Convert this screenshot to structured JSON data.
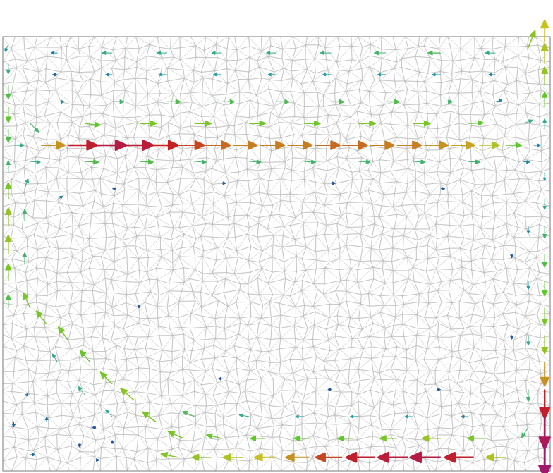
{
  "chart_data": {
    "type": "quiver",
    "xlim": [
      0,
      100
    ],
    "ylim": [
      0,
      80
    ],
    "tick_labels": false,
    "grid": false,
    "color_range": [
      0,
      1
    ],
    "vectors": [
      [
        2,
        60,
        0.3,
        0
      ],
      [
        7,
        60,
        0.7,
        0
      ],
      [
        12,
        60,
        0.85,
        0
      ],
      [
        17,
        60,
        0.9,
        0
      ],
      [
        22,
        60,
        0.88,
        0
      ],
      [
        27,
        60,
        0.82,
        0
      ],
      [
        32,
        60,
        0.78,
        0
      ],
      [
        37,
        60,
        0.74,
        0
      ],
      [
        42,
        60,
        0.72,
        0
      ],
      [
        47,
        60,
        0.72,
        0
      ],
      [
        52,
        60,
        0.72,
        0
      ],
      [
        57,
        60,
        0.74,
        0
      ],
      [
        62,
        60,
        0.74,
        0
      ],
      [
        67,
        60,
        0.72,
        0
      ],
      [
        72,
        60,
        0.72,
        0
      ],
      [
        77,
        60,
        0.7,
        0
      ],
      [
        82,
        60,
        0.68,
        0
      ],
      [
        87,
        60,
        0.6,
        0
      ],
      [
        92,
        60,
        0.45,
        0
      ],
      [
        97,
        60,
        0.2,
        0
      ],
      [
        5,
        57,
        0.3,
        -0.02
      ],
      [
        15,
        57,
        0.4,
        -0.02
      ],
      [
        25,
        57,
        0.4,
        -0.02
      ],
      [
        35,
        57,
        0.35,
        -0.02
      ],
      [
        45,
        57,
        0.35,
        -0.02
      ],
      [
        55,
        57,
        0.35,
        -0.02
      ],
      [
        65,
        57,
        0.35,
        -0.02
      ],
      [
        75,
        57,
        0.35,
        -0.02
      ],
      [
        85,
        57,
        0.35,
        -0.02
      ],
      [
        95,
        57,
        0.2,
        -0.02
      ],
      [
        5,
        64,
        0.25,
        -0.25
      ],
      [
        15,
        64,
        0.45,
        -0.05
      ],
      [
        25,
        64,
        0.5,
        0
      ],
      [
        35,
        64,
        0.5,
        0
      ],
      [
        45,
        64,
        0.48,
        0
      ],
      [
        55,
        64,
        0.48,
        0
      ],
      [
        65,
        64,
        0.5,
        0
      ],
      [
        75,
        64,
        0.5,
        0
      ],
      [
        85,
        64,
        0.45,
        0.02
      ],
      [
        95,
        64,
        0.3,
        0.1
      ],
      [
        10,
        68,
        0.2,
        0
      ],
      [
        20,
        68,
        0.35,
        0
      ],
      [
        30,
        68,
        0.4,
        0
      ],
      [
        40,
        68,
        0.38,
        0
      ],
      [
        50,
        68,
        0.38,
        0
      ],
      [
        60,
        68,
        0.38,
        0
      ],
      [
        70,
        68,
        0.4,
        0
      ],
      [
        80,
        68,
        0.35,
        0
      ],
      [
        90,
        68,
        0.2,
        0.05
      ],
      [
        10,
        73,
        -0.15,
        0
      ],
      [
        20,
        73,
        -0.2,
        0
      ],
      [
        30,
        73,
        -0.25,
        0
      ],
      [
        40,
        73,
        -0.25,
        0
      ],
      [
        50,
        73,
        -0.25,
        0
      ],
      [
        60,
        73,
        -0.25,
        0
      ],
      [
        70,
        73,
        -0.25,
        0
      ],
      [
        80,
        73,
        -0.25,
        0
      ],
      [
        90,
        73,
        -0.2,
        0
      ],
      [
        10,
        77,
        -0.2,
        0
      ],
      [
        20,
        77,
        -0.3,
        0
      ],
      [
        30,
        77,
        -0.3,
        0
      ],
      [
        40,
        77,
        -0.3,
        0
      ],
      [
        50,
        77,
        -0.3,
        0
      ],
      [
        60,
        77,
        -0.32,
        0
      ],
      [
        70,
        77,
        -0.35,
        0
      ],
      [
        80,
        77,
        -0.38,
        0
      ],
      [
        90,
        77,
        -0.3,
        0
      ],
      [
        1,
        63,
        0,
        -0.4
      ],
      [
        1,
        67,
        0,
        -0.45
      ],
      [
        1,
        71,
        0,
        -0.4
      ],
      [
        1,
        75,
        0,
        -0.3
      ],
      [
        1,
        78.5,
        -0.1,
        -0.2
      ],
      [
        99,
        63,
        0,
        0.3
      ],
      [
        99,
        67,
        0,
        0.45
      ],
      [
        99,
        71,
        0,
        0.55
      ],
      [
        99,
        75,
        0,
        0.6
      ],
      [
        99,
        79,
        0,
        0.65
      ],
      [
        96,
        78,
        0.2,
        0.5
      ],
      [
        99,
        55,
        0,
        -0.25
      ],
      [
        99,
        50,
        0,
        -0.3
      ],
      [
        99,
        45,
        0,
        -0.35
      ],
      [
        99,
        40,
        0,
        -0.4
      ],
      [
        99,
        35,
        0,
        -0.45
      ],
      [
        99,
        30,
        0,
        -0.5
      ],
      [
        99,
        25,
        0,
        -0.55
      ],
      [
        99,
        20,
        0,
        -0.7
      ],
      [
        99,
        15,
        0,
        -0.85
      ],
      [
        99,
        10,
        0,
        -0.95
      ],
      [
        99,
        5,
        0,
        -1.0
      ],
      [
        96,
        45,
        0,
        -0.2
      ],
      [
        96,
        35,
        0,
        -0.25
      ],
      [
        96,
        25,
        0,
        -0.3
      ],
      [
        96,
        15,
        0,
        -0.35
      ],
      [
        96,
        8,
        -0.2,
        -0.3
      ],
      [
        92,
        2.5,
        -0.6,
        0
      ],
      [
        86,
        2.5,
        -0.85,
        0
      ],
      [
        80,
        2.5,
        -0.9,
        0
      ],
      [
        74,
        2.5,
        -0.88,
        0
      ],
      [
        68,
        2.5,
        -0.85,
        0
      ],
      [
        62,
        2.5,
        -0.78,
        0
      ],
      [
        56,
        2.5,
        -0.7,
        0
      ],
      [
        50,
        2.5,
        -0.65,
        0
      ],
      [
        44,
        2.5,
        -0.6,
        0
      ],
      [
        38,
        2.5,
        -0.55,
        0
      ],
      [
        32,
        2.5,
        -0.5,
        0.1
      ],
      [
        88,
        6,
        -0.5,
        0
      ],
      [
        80,
        6,
        -0.55,
        0
      ],
      [
        72,
        6,
        -0.5,
        0
      ],
      [
        64,
        6,
        -0.45,
        0
      ],
      [
        56,
        6,
        -0.45,
        0
      ],
      [
        48,
        6,
        -0.45,
        0
      ],
      [
        40,
        6,
        -0.45,
        0.1
      ],
      [
        33,
        6,
        -0.45,
        0.2
      ],
      [
        85,
        10,
        -0.2,
        0
      ],
      [
        75,
        10,
        -0.25,
        0
      ],
      [
        65,
        10,
        -0.25,
        0
      ],
      [
        55,
        10,
        -0.25,
        0
      ],
      [
        45,
        10,
        -0.3,
        0.05
      ],
      [
        35,
        10,
        -0.35,
        0.15
      ],
      [
        28,
        9,
        -0.4,
        0.3
      ],
      [
        24,
        13,
        -0.4,
        0.35
      ],
      [
        20,
        16,
        -0.35,
        0.35
      ],
      [
        16,
        20,
        -0.3,
        0.35
      ],
      [
        12,
        24,
        -0.3,
        0.4
      ],
      [
        8,
        27,
        -0.3,
        0.4
      ],
      [
        5,
        30,
        -0.2,
        0.45
      ],
      [
        20,
        10,
        -0.2,
        0.2
      ],
      [
        15,
        14,
        -0.2,
        0.25
      ],
      [
        10,
        20,
        -0.15,
        0.25
      ],
      [
        1,
        30,
        0,
        0.4
      ],
      [
        1,
        35,
        0,
        0.5
      ],
      [
        1,
        40,
        0,
        0.55
      ],
      [
        1,
        45,
        0,
        0.55
      ],
      [
        1,
        50,
        0,
        0.5
      ],
      [
        1,
        55,
        0,
        0.35
      ],
      [
        4,
        38,
        0,
        0.35
      ],
      [
        4,
        46,
        0,
        0.35
      ],
      [
        4,
        52,
        0.1,
        0.3
      ],
      [
        5,
        14,
        -0.15,
        0
      ],
      [
        2,
        9,
        0,
        -0.15
      ],
      [
        5,
        3,
        0.15,
        0
      ],
      [
        8,
        9,
        0,
        0.15
      ],
      [
        17,
        8,
        -0.1,
        0
      ],
      [
        14,
        5,
        0,
        -0.1
      ],
      [
        17,
        2,
        0.1,
        0
      ],
      [
        20,
        5,
        0,
        0.1
      ],
      [
        20,
        52,
        0.12,
        0
      ],
      [
        40,
        53,
        0.12,
        0
      ],
      [
        60,
        53,
        0.12,
        0
      ],
      [
        80,
        52,
        0.12,
        0
      ],
      [
        93,
        40,
        0,
        -0.12
      ],
      [
        93,
        25,
        0,
        -0.12
      ],
      [
        80,
        15,
        -0.12,
        0
      ],
      [
        60,
        15,
        -0.1,
        0
      ],
      [
        40,
        17,
        -0.1,
        0
      ],
      [
        25,
        30,
        -0.05,
        0.1
      ],
      [
        10,
        50,
        0.15,
        0.1
      ]
    ]
  }
}
